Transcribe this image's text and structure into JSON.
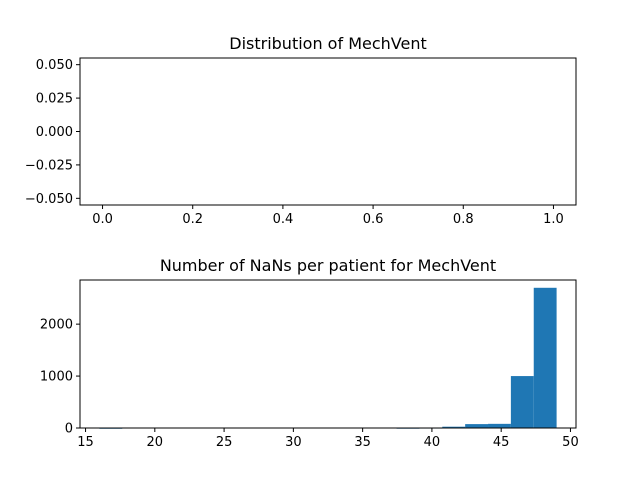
{
  "chart_data": [
    {
      "type": "bar",
      "title": "Distribution of MechVent",
      "xlabel": "",
      "ylabel": "",
      "xlim": [
        -0.05,
        1.05
      ],
      "ylim": [
        -0.055,
        0.055
      ],
      "xticks": [
        0.0,
        0.2,
        0.4,
        0.6,
        0.8,
        1.0
      ],
      "xtick_labels": [
        "0.0",
        "0.2",
        "0.4",
        "0.6",
        "0.8",
        "1.0"
      ],
      "yticks": [
        -0.05,
        -0.025,
        0.0,
        0.025,
        0.05
      ],
      "ytick_labels": [
        "−0.050",
        "−0.025",
        "0.000",
        "0.025",
        "0.050"
      ],
      "bins": [],
      "grid": false
    },
    {
      "type": "bar",
      "title": "Number of NaNs per patient for MechVent",
      "xlabel": "",
      "ylabel": "",
      "xlim": [
        14.6,
        50.4
      ],
      "ylim": [
        0,
        2850
      ],
      "xticks": [
        15,
        20,
        25,
        30,
        35,
        40,
        45,
        50
      ],
      "xtick_labels": [
        "15",
        "20",
        "25",
        "30",
        "35",
        "40",
        "45",
        "50"
      ],
      "yticks": [
        0,
        1000,
        2000
      ],
      "ytick_labels": [
        "0",
        "1000",
        "2000"
      ],
      "bins": [
        {
          "x0": 16.0,
          "x1": 17.65,
          "value": 1
        },
        {
          "x0": 17.65,
          "x1": 19.3,
          "value": 0
        },
        {
          "x0": 19.3,
          "x1": 20.95,
          "value": 0
        },
        {
          "x0": 20.95,
          "x1": 22.6,
          "value": 0
        },
        {
          "x0": 22.6,
          "x1": 24.25,
          "value": 0
        },
        {
          "x0": 24.25,
          "x1": 25.9,
          "value": 0
        },
        {
          "x0": 25.9,
          "x1": 27.55,
          "value": 0
        },
        {
          "x0": 27.55,
          "x1": 29.2,
          "value": 0
        },
        {
          "x0": 29.2,
          "x1": 30.85,
          "value": 0
        },
        {
          "x0": 30.85,
          "x1": 32.5,
          "value": 0
        },
        {
          "x0": 32.5,
          "x1": 34.15,
          "value": 0
        },
        {
          "x0": 34.15,
          "x1": 35.8,
          "value": 0
        },
        {
          "x0": 35.8,
          "x1": 37.45,
          "value": 0
        },
        {
          "x0": 37.45,
          "x1": 39.1,
          "value": 2
        },
        {
          "x0": 39.1,
          "x1": 40.75,
          "value": 5
        },
        {
          "x0": 40.75,
          "x1": 42.4,
          "value": 25
        },
        {
          "x0": 42.4,
          "x1": 44.05,
          "value": 75
        },
        {
          "x0": 44.05,
          "x1": 45.7,
          "value": 80
        },
        {
          "x0": 45.7,
          "x1": 47.35,
          "value": 1000
        },
        {
          "x0": 47.35,
          "x1": 49.0,
          "value": 2700
        }
      ],
      "grid": false
    }
  ]
}
